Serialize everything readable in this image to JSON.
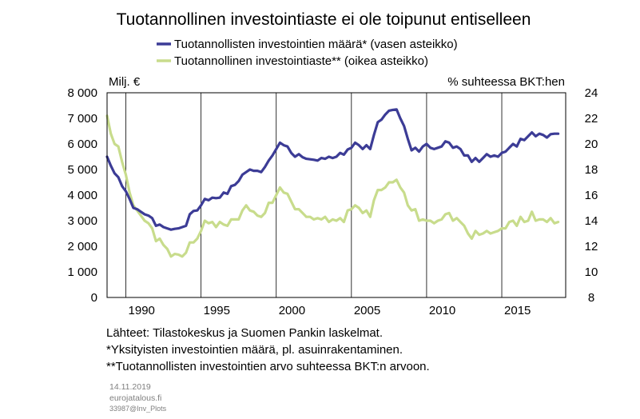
{
  "chart_data": {
    "type": "line",
    "title": "Tuotannollinen investointiaste ei ole toipunut entiselleen",
    "left_axis_label": "Milj. €",
    "right_axis_label": "% suhteessa BKT:hen",
    "left_ylim": [
      0,
      8000
    ],
    "right_ylim": [
      8,
      24
    ],
    "left_ticks": [
      "8 000",
      "7 000",
      "6 000",
      "5 000",
      "4 000",
      "3 000",
      "2 000",
      "1 000",
      "0"
    ],
    "right_ticks": [
      "24",
      "22",
      "20",
      "18",
      "16",
      "14",
      "12",
      "10",
      "8"
    ],
    "x_ticks": [
      "1990",
      "1995",
      "2000",
      "2005",
      "2010",
      "2015"
    ],
    "xlim": [
      1988.75,
      2019.25
    ],
    "grid": "vertical",
    "legend_position": "top-center",
    "series": [
      {
        "name": "Tuotannollisten investointien määrä* (vasen asteikko)",
        "axis": "left",
        "color": "#3c3c96",
        "points": [
          [
            1988.75,
            5500
          ],
          [
            1989.0,
            5150
          ],
          [
            1989.25,
            4850
          ],
          [
            1989.5,
            4700
          ],
          [
            1989.75,
            4350
          ],
          [
            1990.0,
            4150
          ],
          [
            1990.25,
            3850
          ],
          [
            1990.5,
            3500
          ],
          [
            1990.75,
            3450
          ],
          [
            1991.0,
            3350
          ],
          [
            1991.25,
            3250
          ],
          [
            1991.5,
            3200
          ],
          [
            1991.75,
            3100
          ],
          [
            1992.0,
            2800
          ],
          [
            1992.25,
            2850
          ],
          [
            1992.5,
            2750
          ],
          [
            1992.75,
            2700
          ],
          [
            1993.0,
            2650
          ],
          [
            1993.25,
            2680
          ],
          [
            1993.5,
            2700
          ],
          [
            1993.75,
            2750
          ],
          [
            1994.0,
            2800
          ],
          [
            1994.25,
            3250
          ],
          [
            1994.5,
            3380
          ],
          [
            1994.75,
            3400
          ],
          [
            1995.0,
            3600
          ],
          [
            1995.25,
            3850
          ],
          [
            1995.5,
            3800
          ],
          [
            1995.75,
            3900
          ],
          [
            1996.0,
            3880
          ],
          [
            1996.25,
            3900
          ],
          [
            1996.5,
            4100
          ],
          [
            1996.75,
            4050
          ],
          [
            1997.0,
            4350
          ],
          [
            1997.25,
            4400
          ],
          [
            1997.5,
            4550
          ],
          [
            1997.75,
            4800
          ],
          [
            1998.0,
            4900
          ],
          [
            1998.25,
            5000
          ],
          [
            1998.5,
            4950
          ],
          [
            1998.75,
            4950
          ],
          [
            1999.0,
            4900
          ],
          [
            1999.25,
            5100
          ],
          [
            1999.5,
            5350
          ],
          [
            1999.75,
            5550
          ],
          [
            2000.0,
            5800
          ],
          [
            2000.25,
            6050
          ],
          [
            2000.5,
            5950
          ],
          [
            2000.75,
            5900
          ],
          [
            2001.0,
            5650
          ],
          [
            2001.25,
            5500
          ],
          [
            2001.5,
            5600
          ],
          [
            2001.75,
            5480
          ],
          [
            2002.0,
            5420
          ],
          [
            2002.25,
            5400
          ],
          [
            2002.5,
            5380
          ],
          [
            2002.75,
            5350
          ],
          [
            2003.0,
            5450
          ],
          [
            2003.25,
            5420
          ],
          [
            2003.5,
            5500
          ],
          [
            2003.75,
            5450
          ],
          [
            2004.0,
            5500
          ],
          [
            2004.25,
            5650
          ],
          [
            2004.5,
            5580
          ],
          [
            2004.75,
            5780
          ],
          [
            2005.0,
            5850
          ],
          [
            2005.25,
            6050
          ],
          [
            2005.5,
            5950
          ],
          [
            2005.75,
            5800
          ],
          [
            2006.0,
            5950
          ],
          [
            2006.25,
            5800
          ],
          [
            2006.5,
            6350
          ],
          [
            2006.75,
            6850
          ],
          [
            2007.0,
            6950
          ],
          [
            2007.25,
            7150
          ],
          [
            2007.5,
            7300
          ],
          [
            2007.75,
            7330
          ],
          [
            2008.0,
            7350
          ],
          [
            2008.25,
            7000
          ],
          [
            2008.5,
            6700
          ],
          [
            2008.75,
            6200
          ],
          [
            2009.0,
            5750
          ],
          [
            2009.25,
            5850
          ],
          [
            2009.5,
            5700
          ],
          [
            2009.75,
            5900
          ],
          [
            2010.0,
            6000
          ],
          [
            2010.25,
            5850
          ],
          [
            2010.5,
            5800
          ],
          [
            2010.75,
            5850
          ],
          [
            2011.0,
            5900
          ],
          [
            2011.25,
            6100
          ],
          [
            2011.5,
            6050
          ],
          [
            2011.75,
            5850
          ],
          [
            2012.0,
            5900
          ],
          [
            2012.25,
            5800
          ],
          [
            2012.5,
            5550
          ],
          [
            2012.75,
            5550
          ],
          [
            2013.0,
            5300
          ],
          [
            2013.25,
            5450
          ],
          [
            2013.5,
            5300
          ],
          [
            2013.75,
            5450
          ],
          [
            2014.0,
            5600
          ],
          [
            2014.25,
            5500
          ],
          [
            2014.5,
            5550
          ],
          [
            2014.75,
            5500
          ],
          [
            2015.0,
            5650
          ],
          [
            2015.25,
            5700
          ],
          [
            2015.5,
            5850
          ],
          [
            2015.75,
            6000
          ],
          [
            2016.0,
            5900
          ],
          [
            2016.25,
            6200
          ],
          [
            2016.5,
            6150
          ],
          [
            2016.75,
            6300
          ],
          [
            2017.0,
            6450
          ],
          [
            2017.25,
            6300
          ],
          [
            2017.5,
            6400
          ],
          [
            2017.75,
            6350
          ],
          [
            2018.0,
            6250
          ],
          [
            2018.25,
            6380
          ],
          [
            2018.5,
            6400
          ],
          [
            2018.75,
            6400
          ]
        ]
      },
      {
        "name": "Tuotannollinen investointiaste** (oikea asteikko)",
        "axis": "right",
        "color": "#c8dc8c",
        "points": [
          [
            1988.75,
            22.2
          ],
          [
            1989.0,
            20.8
          ],
          [
            1989.25,
            20.0
          ],
          [
            1989.5,
            19.8
          ],
          [
            1989.75,
            18.6
          ],
          [
            1990.0,
            17.6
          ],
          [
            1990.25,
            16.2
          ],
          [
            1990.5,
            15.2
          ],
          [
            1990.75,
            14.8
          ],
          [
            1991.0,
            14.4
          ],
          [
            1991.25,
            14.0
          ],
          [
            1991.5,
            13.8
          ],
          [
            1991.75,
            13.4
          ],
          [
            1992.0,
            12.4
          ],
          [
            1992.25,
            12.6
          ],
          [
            1992.5,
            12.1
          ],
          [
            1992.75,
            11.8
          ],
          [
            1993.0,
            11.2
          ],
          [
            1993.25,
            11.4
          ],
          [
            1993.5,
            11.35
          ],
          [
            1993.75,
            11.2
          ],
          [
            1994.0,
            11.5
          ],
          [
            1994.25,
            12.3
          ],
          [
            1994.5,
            12.3
          ],
          [
            1994.75,
            12.6
          ],
          [
            1995.0,
            13.2
          ],
          [
            1995.25,
            14.0
          ],
          [
            1995.5,
            13.8
          ],
          [
            1995.75,
            13.9
          ],
          [
            1996.0,
            13.5
          ],
          [
            1996.25,
            13.9
          ],
          [
            1996.5,
            13.7
          ],
          [
            1996.75,
            13.6
          ],
          [
            1997.0,
            14.1
          ],
          [
            1997.25,
            14.1
          ],
          [
            1997.5,
            14.1
          ],
          [
            1997.75,
            14.8
          ],
          [
            1998.0,
            15.2
          ],
          [
            1998.25,
            14.8
          ],
          [
            1998.5,
            14.7
          ],
          [
            1998.75,
            14.4
          ],
          [
            1999.0,
            14.3
          ],
          [
            1999.25,
            14.6
          ],
          [
            1999.5,
            15.4
          ],
          [
            1999.75,
            15.4
          ],
          [
            2000.0,
            16.0
          ],
          [
            2000.25,
            16.6
          ],
          [
            2000.5,
            16.2
          ],
          [
            2000.75,
            16.1
          ],
          [
            2001.0,
            15.5
          ],
          [
            2001.25,
            14.9
          ],
          [
            2001.5,
            14.9
          ],
          [
            2001.75,
            14.6
          ],
          [
            2002.0,
            14.3
          ],
          [
            2002.25,
            14.3
          ],
          [
            2002.5,
            14.1
          ],
          [
            2002.75,
            14.2
          ],
          [
            2003.0,
            14.1
          ],
          [
            2003.25,
            14.3
          ],
          [
            2003.5,
            13.9
          ],
          [
            2003.75,
            14.1
          ],
          [
            2004.0,
            14.0
          ],
          [
            2004.25,
            14.2
          ],
          [
            2004.5,
            13.9
          ],
          [
            2004.75,
            14.8
          ],
          [
            2005.0,
            14.9
          ],
          [
            2005.25,
            15.2
          ],
          [
            2005.5,
            15.0
          ],
          [
            2005.75,
            14.6
          ],
          [
            2006.0,
            14.8
          ],
          [
            2006.25,
            14.3
          ],
          [
            2006.5,
            15.6
          ],
          [
            2006.75,
            16.4
          ],
          [
            2007.0,
            16.4
          ],
          [
            2007.25,
            16.6
          ],
          [
            2007.5,
            17.0
          ],
          [
            2007.75,
            17.0
          ],
          [
            2008.0,
            17.2
          ],
          [
            2008.25,
            16.6
          ],
          [
            2008.5,
            16.2
          ],
          [
            2008.75,
            15.2
          ],
          [
            2009.0,
            14.8
          ],
          [
            2009.25,
            14.9
          ],
          [
            2009.5,
            14.0
          ],
          [
            2009.75,
            14.1
          ],
          [
            2010.0,
            14.0
          ],
          [
            2010.25,
            14.0
          ],
          [
            2010.5,
            13.8
          ],
          [
            2010.75,
            14.0
          ],
          [
            2011.0,
            14.1
          ],
          [
            2011.25,
            14.5
          ],
          [
            2011.5,
            14.6
          ],
          [
            2011.75,
            14.0
          ],
          [
            2012.0,
            14.2
          ],
          [
            2012.25,
            13.9
          ],
          [
            2012.5,
            13.6
          ],
          [
            2012.75,
            13.0
          ],
          [
            2013.0,
            12.6
          ],
          [
            2013.25,
            13.2
          ],
          [
            2013.5,
            12.9
          ],
          [
            2013.75,
            13.0
          ],
          [
            2014.0,
            13.2
          ],
          [
            2014.25,
            13.0
          ],
          [
            2014.5,
            13.1
          ],
          [
            2014.75,
            13.2
          ],
          [
            2015.0,
            13.4
          ],
          [
            2015.25,
            13.4
          ],
          [
            2015.5,
            13.9
          ],
          [
            2015.75,
            14.0
          ],
          [
            2016.0,
            13.6
          ],
          [
            2016.25,
            14.3
          ],
          [
            2016.5,
            13.9
          ],
          [
            2016.75,
            14.0
          ],
          [
            2017.0,
            14.7
          ],
          [
            2017.25,
            14.0
          ],
          [
            2017.5,
            14.1
          ],
          [
            2017.75,
            14.1
          ],
          [
            2018.0,
            13.9
          ],
          [
            2018.25,
            14.2
          ],
          [
            2018.5,
            13.8
          ],
          [
            2018.75,
            13.9
          ]
        ]
      }
    ],
    "footnotes": [
      "Lähteet: Tilastokeskus ja Suomen Pankin laskelmat.",
      "*Yksityisten investointien määrä, pl. asuinrakentaminen.",
      "**Tuotannollisten investointien arvo suhteessa BKT:n arvoon."
    ],
    "date_label": "14.11.2019",
    "source_site": "eurojatalous.fi",
    "code_label": "33987@Inv_Plots"
  }
}
